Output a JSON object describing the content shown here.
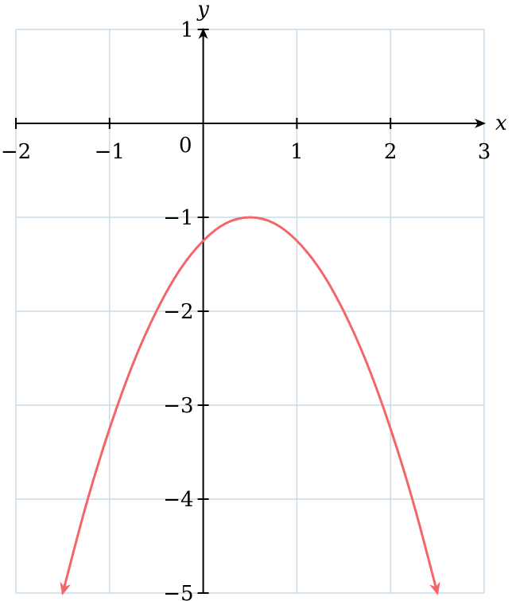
{
  "chart_data": {
    "type": "line",
    "title": "",
    "xlabel": "x",
    "ylabel": "y",
    "xlim": [
      -2,
      3
    ],
    "ylim": [
      -5,
      1
    ],
    "grid": true,
    "x_ticks": [
      {
        "value": -2,
        "label": "−2"
      },
      {
        "value": -1,
        "label": "−1"
      },
      {
        "value": 1,
        "label": "1"
      },
      {
        "value": 2,
        "label": "2"
      },
      {
        "value": 3,
        "label": "3"
      }
    ],
    "y_ticks": [
      {
        "value": 1,
        "label": "1"
      },
      {
        "value": -1,
        "label": "−1"
      },
      {
        "value": -2,
        "label": "−2"
      },
      {
        "value": -3,
        "label": "−3"
      },
      {
        "value": -4,
        "label": "−4"
      },
      {
        "value": -5,
        "label": "−5"
      }
    ],
    "origin_label": "0",
    "series": [
      {
        "color": "#f26669",
        "arrows_at_ends": true,
        "x": [
          -1.5,
          -1.25,
          -1.0,
          -0.75,
          -0.5,
          -0.25,
          0.0,
          0.25,
          0.5,
          0.75,
          1.0,
          1.25,
          1.5,
          1.75,
          2.0,
          2.25,
          2.5
        ],
        "y": [
          -5.0,
          -4.06,
          -3.25,
          -2.56,
          -2.0,
          -1.56,
          -1.25,
          -1.06,
          -1.0,
          -1.06,
          -1.25,
          -1.56,
          -2.0,
          -2.56,
          -3.25,
          -4.06,
          -5.0
        ]
      }
    ]
  }
}
